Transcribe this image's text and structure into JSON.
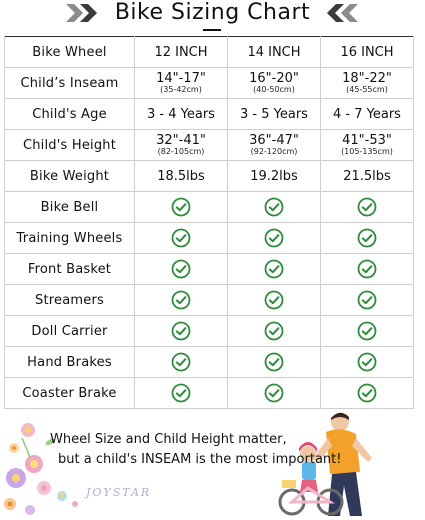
{
  "title": "Bike Sizing Chart",
  "colors": {
    "check": "#2e8b3a",
    "border": "#2b2b2b",
    "grid": "#cfcfcf"
  },
  "table": {
    "header": {
      "label": "Bike Wheel",
      "cols": [
        "12 INCH",
        "14 INCH",
        "16 INCH"
      ]
    },
    "inseam": {
      "label": "Child’s Inseam",
      "values": [
        {
          "main": "14\"-17\"",
          "sub": "(35-42cm)"
        },
        {
          "main": "16\"-20\"",
          "sub": "(40-50cm)"
        },
        {
          "main": "18\"-22\"",
          "sub": "(45-55cm)"
        }
      ]
    },
    "age": {
      "label": "Child's Age",
      "values": [
        "3 - 4 Years",
        "3 - 5 Years",
        "4 - 7 Years"
      ]
    },
    "height": {
      "label": "Child's Height",
      "values": [
        {
          "main": "32\"-41\"",
          "sub": "(82-105cm)"
        },
        {
          "main": "36\"-47\"",
          "sub": "(92-120cm)"
        },
        {
          "main": "41\"-53\"",
          "sub": "(105-135cm)"
        }
      ]
    },
    "weight": {
      "label": "Bike Weight",
      "values": [
        "18.5lbs",
        "19.2lbs",
        "21.5lbs"
      ]
    },
    "features": [
      {
        "label": "Bike Bell",
        "icon": "check-circle-icon"
      },
      {
        "label": "Training Wheels",
        "icon": "check-circle-icon"
      },
      {
        "label": "Front Basket",
        "icon": "check-circle-icon"
      },
      {
        "label": "Streamers",
        "icon": "check-circle-icon"
      },
      {
        "label": "Doll Carrier",
        "icon": "check-circle-icon"
      },
      {
        "label": "Hand Brakes",
        "icon": "check-circle-icon"
      },
      {
        "label": "Coaster Brake",
        "icon": "check-circle-icon"
      }
    ]
  },
  "footer": {
    "line1": "Wheel Size and Child Height matter,",
    "line2": "but a child's INSEAM is the most important!",
    "brand": "JOYSTAR"
  }
}
